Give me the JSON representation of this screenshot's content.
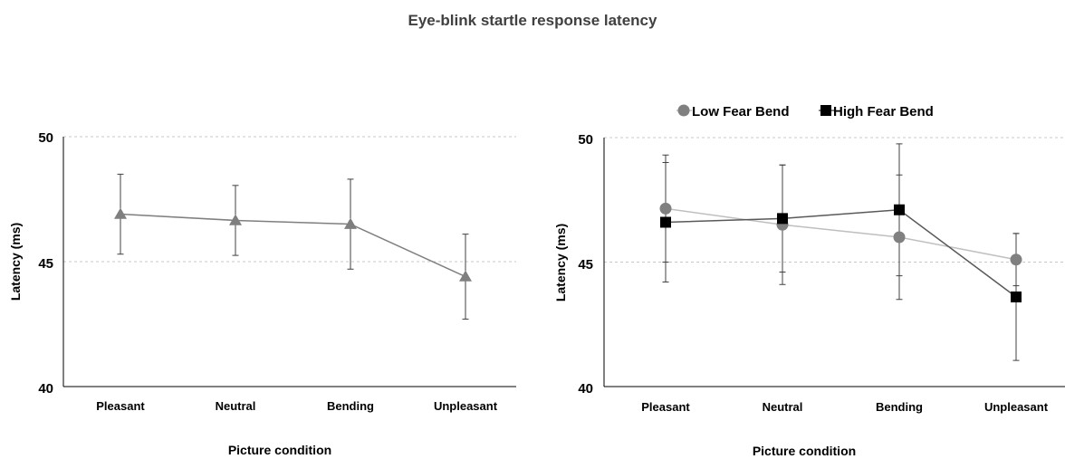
{
  "title": "Eye-blink startle response latency",
  "chart_data": [
    {
      "type": "line",
      "categories": [
        "Pleasant",
        "Neutral",
        "Bending",
        "Unpleasant"
      ],
      "ylabel": "Latency (ms)",
      "xlabel": "Picture condition",
      "ylim": [
        40,
        50
      ],
      "yticks": [
        40,
        45,
        50
      ],
      "grid": true,
      "legend": "none",
      "series": [
        {
          "values": [
            46.9,
            46.65,
            46.5,
            44.4
          ],
          "errors": [
            1.6,
            1.4,
            1.8,
            1.7
          ],
          "marker": "triangle",
          "color": "#7f7f7f"
        }
      ]
    },
    {
      "type": "line",
      "categories": [
        "Pleasant",
        "Neutral",
        "Bending",
        "Unpleasant"
      ],
      "ylabel": "Latency (ms)",
      "xlabel": "Picture condition",
      "ylim": [
        40,
        50
      ],
      "yticks": [
        40,
        45,
        50
      ],
      "grid": true,
      "legend": "top-center",
      "series": [
        {
          "name": "Low Fear Bend",
          "values": [
            47.15,
            46.5,
            46.0,
            45.1
          ],
          "errors": [
            2.15,
            2.4,
            2.5,
            1.05
          ],
          "marker": "circle",
          "color": "#808080",
          "line_color": "#bfbfbf"
        },
        {
          "name": "High Fear Bend",
          "values": [
            46.6,
            46.75,
            47.1,
            43.6
          ],
          "errors": [
            2.4,
            2.15,
            2.65,
            2.55
          ],
          "marker": "square",
          "color": "#000000",
          "line_color": "#595959"
        }
      ]
    }
  ]
}
